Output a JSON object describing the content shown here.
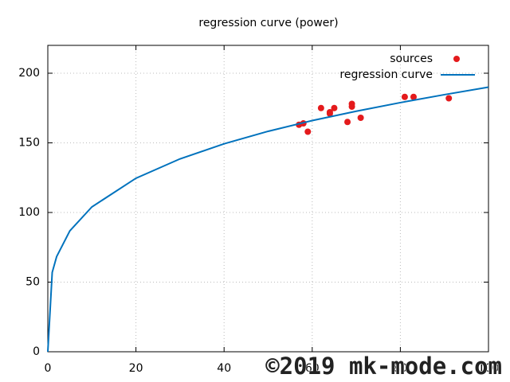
{
  "chart_data": {
    "type": "scatter",
    "title": "regression curve (power)",
    "xlim": [
      0,
      100
    ],
    "xticks": [
      0,
      20,
      40,
      60,
      80,
      100
    ],
    "ylim": [
      0,
      220
    ],
    "yticks": [
      0,
      50,
      100,
      150,
      200
    ],
    "grid": true,
    "legend": "top-right",
    "series": [
      {
        "name": "sources",
        "color": "#e41a1c",
        "mode": "markers",
        "x": [
          57,
          58,
          59,
          62,
          64,
          64,
          65,
          68,
          69,
          69,
          71,
          81,
          83,
          91
        ],
        "values": [
          163,
          164,
          158,
          175,
          172,
          171,
          175,
          165,
          178,
          176,
          168,
          183,
          183,
          182
        ]
      },
      {
        "name": "regression curve",
        "color": "#0072bd",
        "mode": "line",
        "x": [
          0,
          1,
          2,
          5,
          10,
          20,
          30,
          40,
          50,
          60,
          70,
          80,
          90,
          100
        ],
        "values": [
          0,
          57,
          68.3,
          86.8,
          104,
          124.6,
          138.5,
          149.3,
          158.3,
          166,
          172.7,
          178.9,
          184.6,
          190
        ]
      }
    ],
    "watermark": "©2019 mk-mode.com"
  }
}
